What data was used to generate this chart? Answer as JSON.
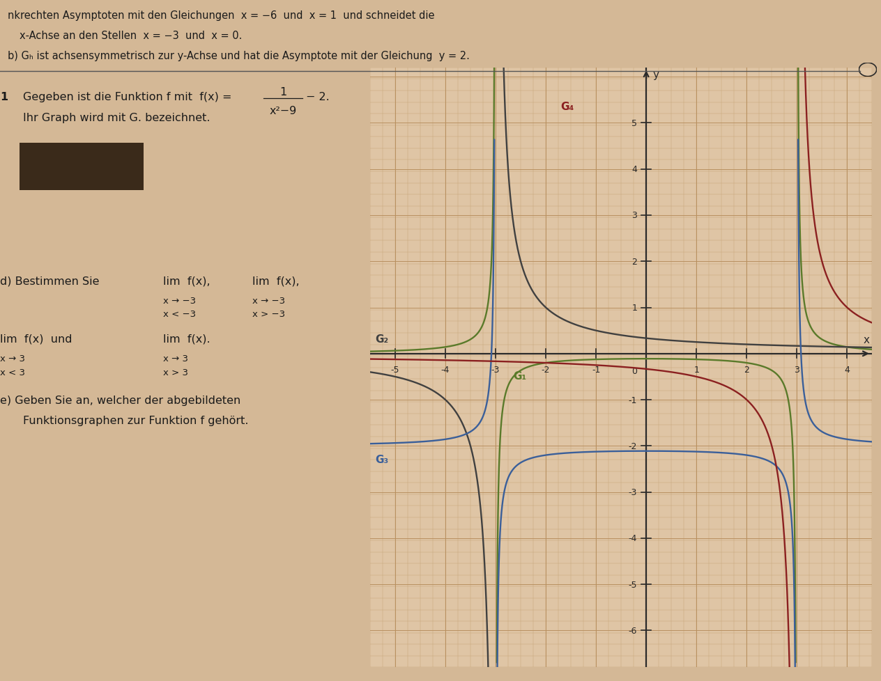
{
  "page_bg": "#d4b896",
  "graph_bg": "#dfc5a5",
  "grid_minor_color": "#c8a87a",
  "grid_major_color": "#b89060",
  "axis_color": "#2a2a2a",
  "G1_color": "#5a7a2a",
  "G2_color": "#404040",
  "G3_color": "#3a5f9a",
  "G4_color": "#8b2020",
  "G1_label": "G₁",
  "G2_label": "G₂",
  "G3_label": "G₃",
  "G4_label": "G₄",
  "label_fontsize": 11,
  "text_color": "#1a1a1a",
  "xlim": [
    -5.5,
    4.5
  ],
  "ylim": [
    -6.8,
    6.2
  ],
  "xticks": [
    -5,
    -4,
    -3,
    -2,
    -1,
    1,
    2,
    3,
    4
  ],
  "yticks": [
    -6,
    -5,
    -4,
    -3,
    -2,
    -1,
    1,
    2,
    3,
    4,
    5
  ],
  "line1": "x-Achse an den Stellen  x = −3  und  x = 0.",
  "line_top": "nkrechten Asymptoten mit den Gleichungen  x = −6  und  x = 1  und schneidet die",
  "line_b": "b) Gₕ ist achsensymmetrisch zur y-Achse und hat die Asymptote mit der Gleichung  y = 2.",
  "line_1": "1   Gegeben ist die Funktion f mit  f(x) =",
  "line_1b": "− 2.",
  "line_ihr": "Ihr Graph wird mit Gₙ bezeichnet.",
  "line_d": "d) Bestimmen Sie",
  "line_lim1": "lim  f(x),   lim  f(x),",
  "line_lim2": "x → −3         x → −3",
  "line_lim3": "x < −3         x > −3",
  "line_lim4": "lim  f(x)  und   lim  f(x).",
  "line_lim5": "x → 3            x → 3",
  "line_lim6": "x < 3             x > 3",
  "line_e": "e) Geben Sie an, welcher der abgebildeten",
  "line_e2": "Funktionsgraphen zur Funktion f gehört."
}
